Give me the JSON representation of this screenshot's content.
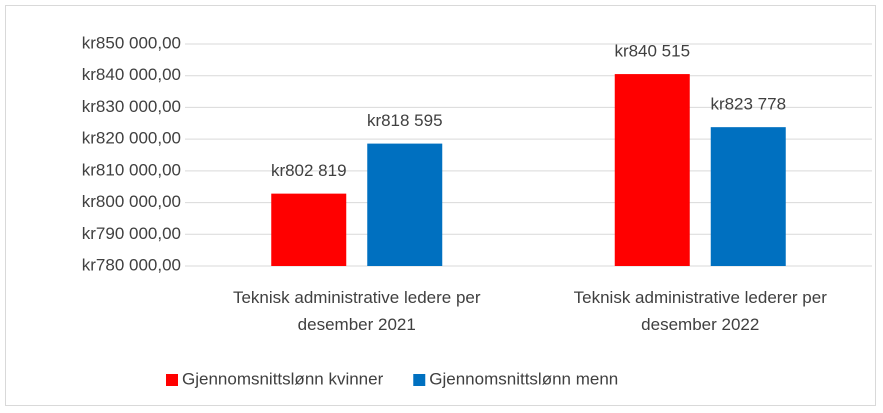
{
  "chart_data": {
    "type": "bar",
    "categories": [
      "Teknisk administrative ledere per desember 2021",
      "Teknisk administrative  lederer per desember 2022"
    ],
    "series": [
      {
        "name": "Gjennomsnittslønn kvinner",
        "color": "#ff0000",
        "values": [
          802819,
          840515
        ],
        "value_labels": [
          "kr802 819",
          "kr840 515"
        ]
      },
      {
        "name": "Gjennomsnittslønn menn",
        "color": "#0070c0",
        "values": [
          818595,
          823778
        ],
        "value_labels": [
          "kr818 595",
          "kr823 778"
        ]
      }
    ],
    "ylim": [
      780000,
      850000
    ],
    "yticks": [
      {
        "value": 780000,
        "label": "kr780 000,00"
      },
      {
        "value": 790000,
        "label": "kr790 000,00"
      },
      {
        "value": 800000,
        "label": "kr800 000,00"
      },
      {
        "value": 810000,
        "label": "kr810 000,00"
      },
      {
        "value": 820000,
        "label": "kr820 000,00"
      },
      {
        "value": 830000,
        "label": "kr830 000,00"
      },
      {
        "value": 840000,
        "label": "kr840 000,00"
      },
      {
        "value": 850000,
        "label": "kr850 000,00"
      }
    ],
    "grid": true,
    "legend": "bottom"
  }
}
